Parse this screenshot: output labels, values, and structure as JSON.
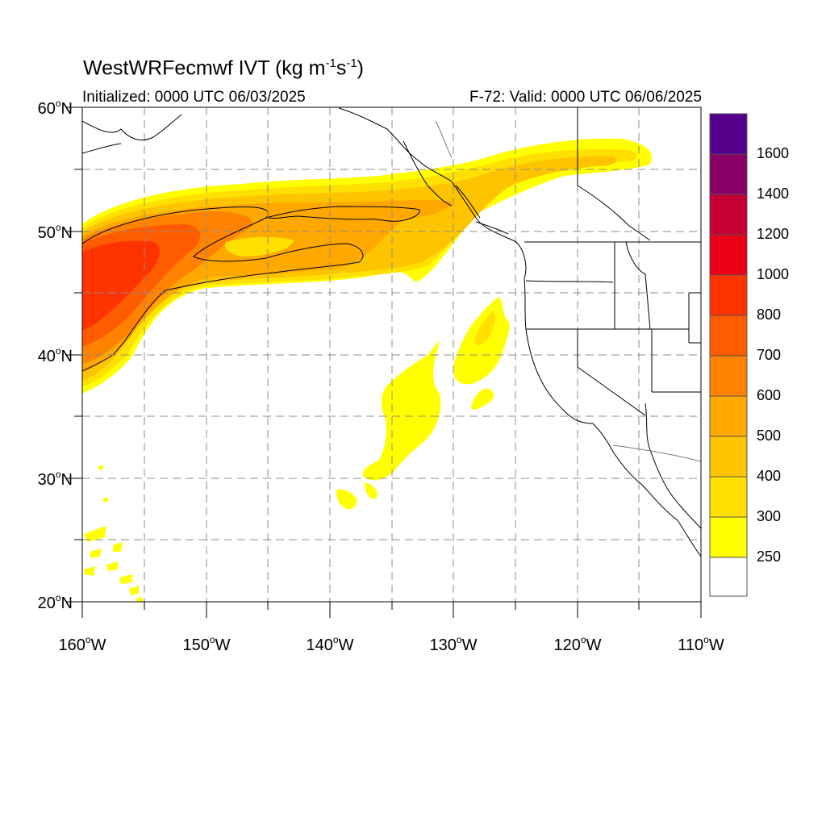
{
  "header": {
    "title": "WestWRFecmwf IVT (kg m",
    "title_unit_exp1": "-1",
    "title_unit_s": "s",
    "title_unit_exp2": "-1",
    "title_close": ")",
    "initialized": "Initialized: 0000 UTC 06/03/2025",
    "valid": "F-72: Valid: 0000 UTC 06/06/2025"
  },
  "axes": {
    "lat_labels": [
      "60",
      "50",
      "40",
      "30",
      "20"
    ],
    "lat_suffix": "N",
    "lon_labels": [
      "160",
      "150",
      "140",
      "130",
      "120",
      "110"
    ],
    "lon_suffix": "W",
    "lat_range": [
      20,
      60
    ],
    "lon_range": [
      -160,
      -110
    ],
    "grid_step_deg": 5,
    "grid_style": "dashed gray"
  },
  "colorbar": {
    "labels": [
      "1600",
      "1400",
      "1200",
      "1000",
      "800",
      "700",
      "600",
      "500",
      "400",
      "300",
      "250"
    ],
    "colors": [
      "#55008c",
      "#880066",
      "#c40035",
      "#ec0017",
      "#fe3300",
      "#ff5c00",
      "#ff8200",
      "#ffa800",
      "#ffc400",
      "#ffe000",
      "#ffff00",
      "#ffffff"
    ]
  },
  "fill_colors": {
    "lvl250": "#ffff00",
    "lvl300": "#ffe000",
    "lvl400": "#ffc400",
    "lvl500": "#ffa800",
    "lvl600": "#ff8200",
    "lvl700": "#ff5c00",
    "lvl800": "#fe3300"
  }
}
